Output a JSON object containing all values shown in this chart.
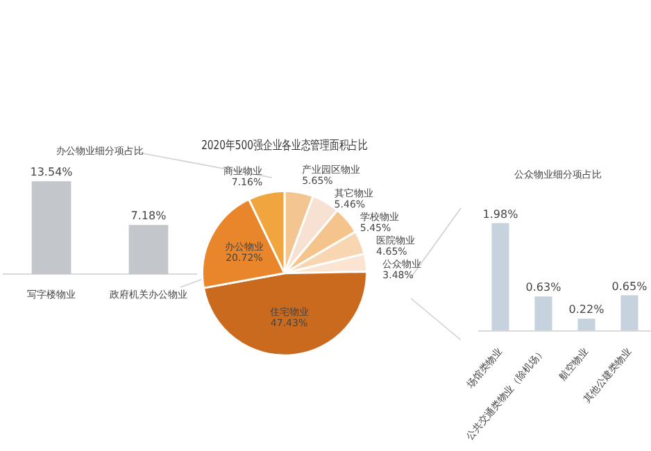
{
  "chart_data": [
    {
      "type": "bar",
      "title": "办公物业细分项占比",
      "categories": [
        "写字楼物业",
        "政府机关办公物业"
      ],
      "values": [
        13.54,
        7.18
      ],
      "color": "#c3c6ca",
      "value_labels": [
        "13.54%",
        "7.18%"
      ]
    },
    {
      "type": "pie",
      "title": "2020年500强企业各业态管理面积占比",
      "categories": [
        "产业园区物业",
        "其它物业",
        "学校物业",
        "医院物业",
        "公众物业",
        "住宅物业",
        "办公物业",
        "商业物业"
      ],
      "values": [
        5.65,
        5.46,
        5.45,
        4.65,
        3.48,
        47.43,
        20.72,
        7.16
      ],
      "colors": [
        "#f3c691",
        "#f6e1d2",
        "#f5c48c",
        "#f8d6b2",
        "#fbe5d2",
        "#c96a1f",
        "#e9862b",
        "#f0a53e"
      ],
      "value_labels": [
        "5.65%",
        "5.46%",
        "5.45%",
        "4.65%",
        "3.48%",
        "47.43%",
        "20.72%",
        "7.16%"
      ]
    },
    {
      "type": "bar",
      "title": "公众物业细分项占比",
      "categories": [
        "场馆类物业",
        "公共交通类物业（除机场）",
        "航空物业",
        "其他公建类物业"
      ],
      "values": [
        1.98,
        0.63,
        0.22,
        0.65
      ],
      "color": "#c6d3de",
      "value_labels": [
        "1.98%",
        "0.63%",
        "0.22%",
        "0.65%"
      ]
    }
  ]
}
